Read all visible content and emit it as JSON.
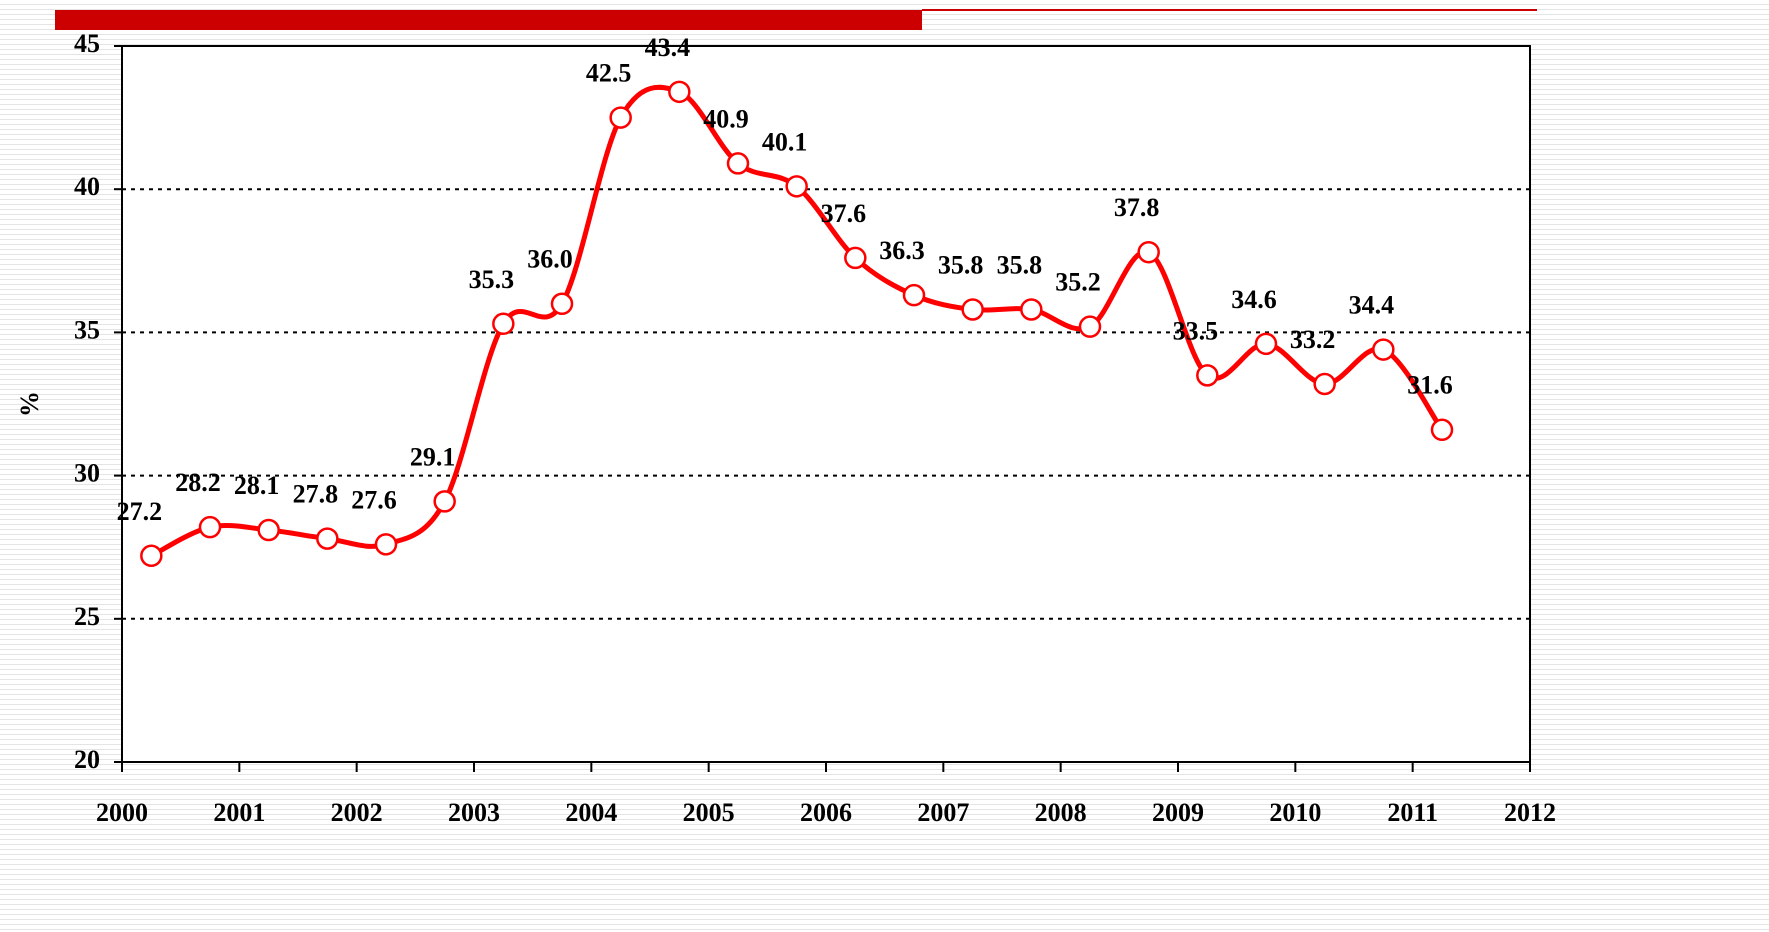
{
  "chart_data": {
    "type": "line",
    "y_label": "%",
    "x": [
      2000.25,
      2000.75,
      2001.25,
      2001.75,
      2002.25,
      2002.75,
      2003.25,
      2003.75,
      2004.25,
      2004.75,
      2005.25,
      2005.75,
      2006.25,
      2006.75,
      2007.25,
      2007.75,
      2008.25,
      2008.75,
      2009.25,
      2009.75,
      2010.25,
      2010.75,
      2011.25
    ],
    "series": [
      {
        "color": "#ff0000",
        "values": [
          27.2,
          28.2,
          28.1,
          27.8,
          27.6,
          29.1,
          35.3,
          36.0,
          42.5,
          43.4,
          40.9,
          40.1,
          37.6,
          36.3,
          35.8,
          35.8,
          35.2,
          37.8,
          33.5,
          34.6,
          33.2,
          34.4,
          31.6
        ],
        "value_labels": [
          "27.2",
          "28.2",
          "28.1",
          "27.8",
          "27.6",
          "29.1",
          "35.3",
          "36.0",
          "42.5",
          "43.4",
          "40.9",
          "40.1",
          "37.6",
          "36.3",
          "35.8",
          "35.8",
          "35.2",
          "37.8",
          "33.5",
          "34.6",
          "33.2",
          "34.4",
          "31.6"
        ]
      }
    ],
    "xlim": [
      2000,
      2012
    ],
    "xticks": [
      2000,
      2001,
      2002,
      2003,
      2004,
      2005,
      2006,
      2007,
      2008,
      2009,
      2010,
      2011,
      2012
    ],
    "ylim": [
      20,
      45
    ],
    "yticks": [
      20,
      25,
      30,
      35,
      40,
      45
    ],
    "grid": true
  }
}
